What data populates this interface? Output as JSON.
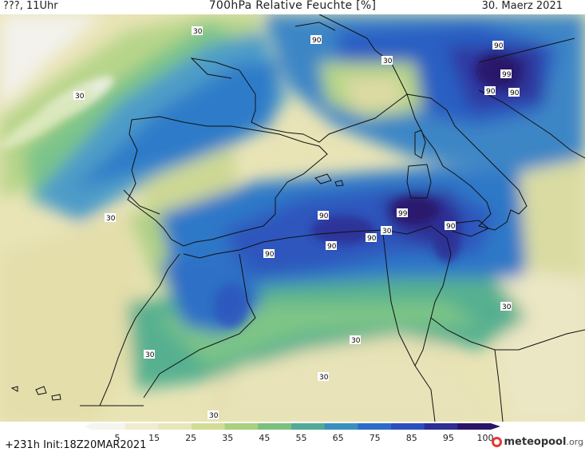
{
  "header": {
    "left": "???, 11Uhr",
    "title": "700hPa Relative Feuchte [%]",
    "date": "30. Maerz 2021"
  },
  "colorbar": {
    "ticks": [
      "5",
      "15",
      "25",
      "35",
      "45",
      "55",
      "65",
      "75",
      "85",
      "95",
      "100"
    ],
    "colors": [
      "#f5f5f0",
      "#f1ecd0",
      "#e7e6b8",
      "#d2dc97",
      "#a9d07f",
      "#7cc07e",
      "#52aa96",
      "#3a8fbf",
      "#2b6cc9",
      "#2c4fbd",
      "#2d2f93",
      "#2a1468"
    ]
  },
  "footer": {
    "run": "+231h  Init:18Z20MAR2021",
    "logo_main": "meteopool",
    "logo_tld": ".org"
  },
  "contour_labels": [
    "30",
    "90",
    "30",
    "90",
    "99",
    "90",
    "90",
    "30",
    "30",
    "90",
    "90",
    "99",
    "90",
    "90",
    "90",
    "30",
    "30",
    "30",
    "30",
    "30",
    "30"
  ]
}
